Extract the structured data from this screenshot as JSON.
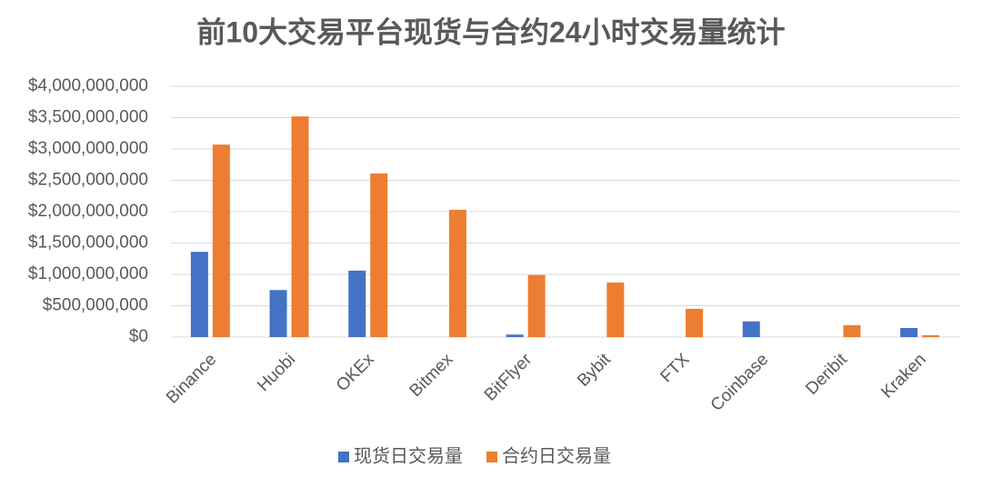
{
  "chart_data": {
    "type": "bar",
    "title": "前10大交易平台现货与合约24小时交易量统计",
    "categories": [
      "Binance",
      "Huobi",
      "OKEx",
      "Bitmex",
      "BitFlyer",
      "Bybit",
      "FTX",
      "Coinbase",
      "Deribit",
      "Kraken"
    ],
    "series": [
      {
        "name": "现货日交易量",
        "color": "#4472c4",
        "values": [
          1360000000,
          750000000,
          1060000000,
          0,
          40000000,
          0,
          0,
          250000000,
          0,
          145000000
        ]
      },
      {
        "name": "合约日交易量",
        "color": "#ed7d31",
        "values": [
          3070000000,
          3520000000,
          2610000000,
          2030000000,
          990000000,
          870000000,
          450000000,
          0,
          190000000,
          30000000
        ]
      }
    ],
    "ylim": [
      0,
      4000000000
    ],
    "yticks": [
      {
        "value": 0,
        "label": "$0"
      },
      {
        "value": 500000000,
        "label": "$500,000,000"
      },
      {
        "value": 1000000000,
        "label": "$1,000,000,000"
      },
      {
        "value": 1500000000,
        "label": "$1,500,000,000"
      },
      {
        "value": 2000000000,
        "label": "$2,000,000,000"
      },
      {
        "value": 2500000000,
        "label": "$2,500,000,000"
      },
      {
        "value": 3000000000,
        "label": "$3,000,000,000"
      },
      {
        "value": 3500000000,
        "label": "$3,500,000,000"
      },
      {
        "value": 4000000000,
        "label": "$4,000,000,000"
      }
    ],
    "grid": true,
    "legend": "bottom"
  }
}
